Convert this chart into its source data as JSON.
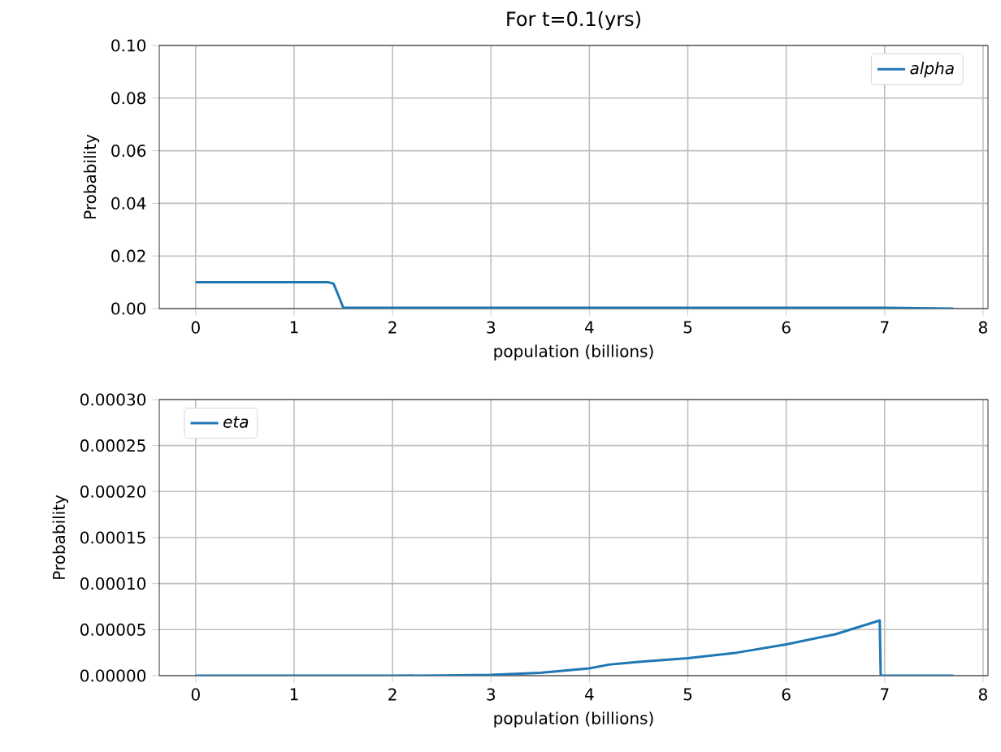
{
  "chart_data": [
    {
      "type": "line",
      "title": "For t=0.1(yrs)",
      "xlabel": "population (billions)",
      "ylabel": "Probability",
      "xlim": [
        -0.37,
        8.05
      ],
      "ylim": [
        0,
        0.1
      ],
      "xticks": [
        0,
        1,
        2,
        3,
        4,
        5,
        6,
        7,
        8
      ],
      "yticks": [
        {
          "value": 0,
          "label": "0.00"
        },
        {
          "value": 0.02,
          "label": "0.02"
        },
        {
          "value": 0.04,
          "label": "0.04"
        },
        {
          "value": 0.06,
          "label": "0.06"
        },
        {
          "value": 0.08,
          "label": "0.08"
        },
        {
          "value": 0.1,
          "label": "0.10"
        }
      ],
      "grid": true,
      "legend": "top right",
      "marker": "none",
      "line_style": "solid",
      "series": [
        {
          "name": "alpha",
          "color": "#1f77b4",
          "x": [
            0,
            0.5,
            1,
            1.35,
            1.4,
            1.45,
            1.5,
            2,
            3,
            4,
            5,
            6,
            7,
            7.7
          ],
          "values": [
            0.01,
            0.01,
            0.01,
            0.01,
            0.0095,
            0.005,
            0.0003,
            0.0003,
            0.0003,
            0.0003,
            0.0003,
            0.0003,
            0.0003,
            0
          ]
        }
      ]
    },
    {
      "type": "line",
      "xlabel": "population (billions)",
      "ylabel": "Probability",
      "xlim": [
        -0.37,
        8.05
      ],
      "ylim": [
        0,
        0.0003
      ],
      "xticks": [
        0,
        1,
        2,
        3,
        4,
        5,
        6,
        7,
        8
      ],
      "yticks": [
        {
          "value": 0,
          "label": "0.00000"
        },
        {
          "value": 5e-05,
          "label": "0.00005"
        },
        {
          "value": 0.0001,
          "label": "0.00010"
        },
        {
          "value": 0.00015,
          "label": "0.00015"
        },
        {
          "value": 0.0002,
          "label": "0.00020"
        },
        {
          "value": 0.00025,
          "label": "0.00025"
        },
        {
          "value": 0.0003,
          "label": "0.00030"
        }
      ],
      "grid": true,
      "legend": "top left",
      "marker": "none",
      "line_style": "solid",
      "series": [
        {
          "name": "eta",
          "color": "#1f77b4",
          "x": [
            0,
            1,
            2,
            2.5,
            3,
            3.5,
            4,
            4.2,
            4.5,
            5,
            5.5,
            6,
            6.5,
            6.95,
            6.96,
            7.7
          ],
          "values": [
            0,
            0,
            0,
            2e-07,
            8e-07,
            3e-06,
            8e-06,
            1.2e-05,
            1.5e-05,
            1.9e-05,
            2.5e-05,
            3.4e-05,
            4.5e-05,
            6e-05,
            0,
            0
          ]
        }
      ]
    }
  ]
}
